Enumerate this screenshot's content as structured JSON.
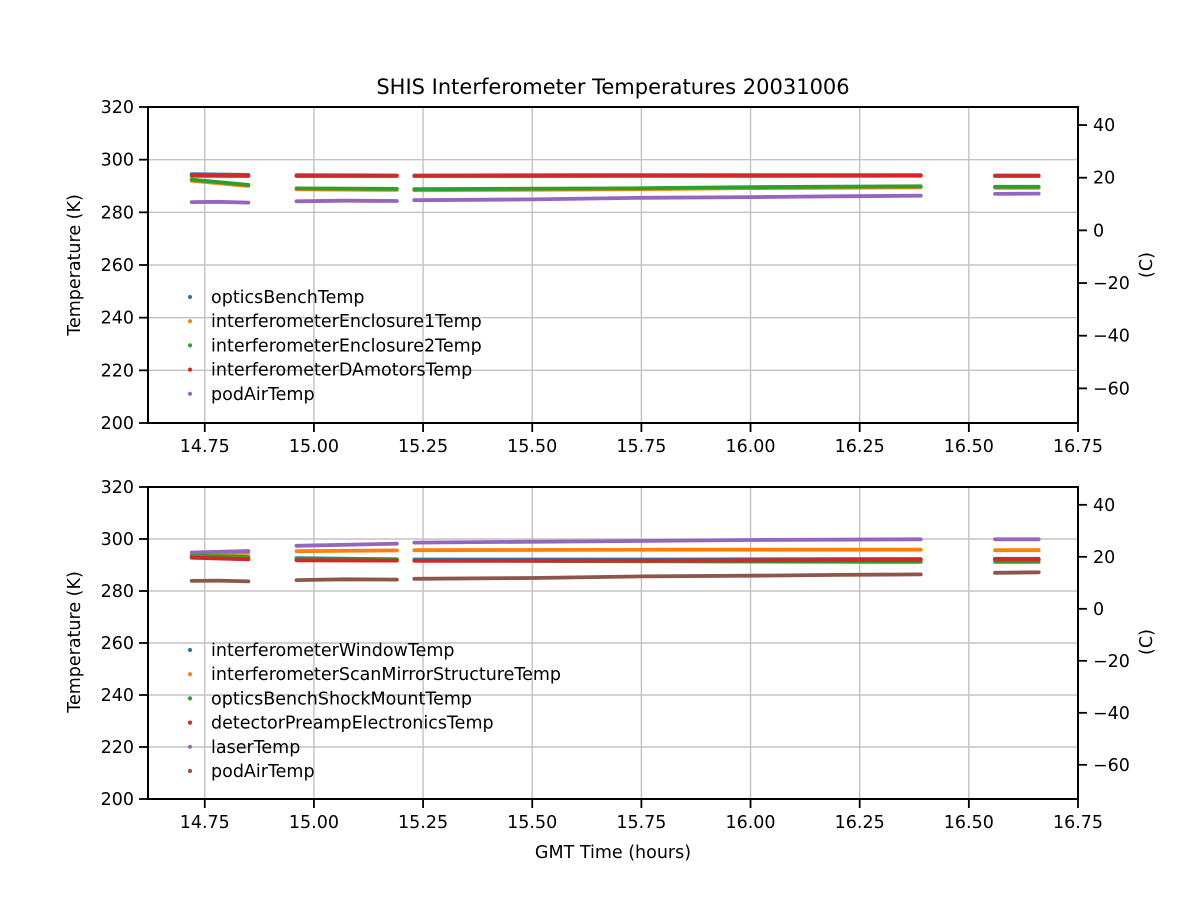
{
  "figure": {
    "title": "SHIS Interferometer Temperatures 20031006",
    "background_color": "#ffffff",
    "grid_color": "#c2c2c2",
    "spine_color": "#000000",
    "text_color": "#000000"
  },
  "chart_data": [
    {
      "type": "scatter",
      "title": "SHIS Interferometer Temperatures 20031006",
      "xlabel": "",
      "ylabel": "Temperature (K)",
      "ylabel_right": "(C)",
      "xlim": [
        14.62,
        16.75
      ],
      "ylim": [
        200,
        320
      ],
      "grid": true,
      "legend_position": "lower-left-inside",
      "xticks": [
        14.75,
        15.0,
        15.25,
        15.5,
        15.75,
        16.0,
        16.25,
        16.5,
        16.75
      ],
      "xtick_labels": [
        "14.75",
        "15.00",
        "15.25",
        "15.50",
        "15.75",
        "16.00",
        "16.25",
        "16.50",
        "16.75"
      ],
      "yticks": [
        200,
        220,
        240,
        260,
        280,
        300,
        320
      ],
      "ytick_labels": [
        "200",
        "220",
        "240",
        "260",
        "280",
        "300",
        "320"
      ],
      "yticks_right_C": [
        40,
        20,
        0,
        -20,
        -40,
        -60
      ],
      "ytick_right_labels": [
        "40",
        "20",
        "0",
        "−20",
        "−40",
        "−60"
      ],
      "series": [
        {
          "name": "opticsBenchTemp",
          "color": "#1f77b4",
          "segments": [
            [
              [
                14.72,
                294.5
              ],
              [
                14.85,
                294.2
              ]
            ],
            [
              [
                14.96,
                294.1
              ],
              [
                15.19,
                294.0
              ]
            ],
            [
              [
                15.23,
                294.0
              ],
              [
                15.6,
                294.1
              ],
              [
                16.0,
                294.15
              ],
              [
                16.39,
                294.1
              ]
            ],
            [
              [
                16.56,
                294.0
              ],
              [
                16.66,
                294.0
              ]
            ]
          ]
        },
        {
          "name": "interferometerEnclosure1Temp",
          "color": "#ff7f0e",
          "segments": [
            [
              [
                14.72,
                292.0
              ],
              [
                14.85,
                290.0
              ]
            ],
            [
              [
                14.96,
                288.7
              ],
              [
                15.19,
                288.5
              ]
            ],
            [
              [
                15.23,
                288.4
              ],
              [
                15.7,
                288.7
              ],
              [
                16.0,
                289.2
              ],
              [
                16.39,
                289.5
              ]
            ],
            [
              [
                16.56,
                289.3
              ],
              [
                16.66,
                289.3
              ]
            ]
          ]
        },
        {
          "name": "interferometerEnclosure2Temp",
          "color": "#2ca02c",
          "segments": [
            [
              [
                14.72,
                292.4
              ],
              [
                14.85,
                290.4
              ]
            ],
            [
              [
                14.96,
                289.1
              ],
              [
                15.19,
                288.9
              ]
            ],
            [
              [
                15.23,
                288.8
              ],
              [
                15.7,
                289.1
              ],
              [
                16.0,
                289.6
              ],
              [
                16.39,
                289.9
              ]
            ],
            [
              [
                16.56,
                289.7
              ],
              [
                16.66,
                289.7
              ]
            ]
          ]
        },
        {
          "name": "interferometerDAmotorsTemp",
          "color": "#d62728",
          "segments": [
            [
              [
                14.72,
                293.9
              ],
              [
                14.85,
                293.8
              ]
            ],
            [
              [
                14.96,
                293.8
              ],
              [
                15.19,
                293.8
              ]
            ],
            [
              [
                15.23,
                293.8
              ],
              [
                16.39,
                293.9
              ]
            ],
            [
              [
                16.56,
                293.8
              ],
              [
                16.66,
                293.8
              ]
            ]
          ]
        },
        {
          "name": "podAirTemp",
          "color": "#9467bd",
          "segments": [
            [
              [
                14.72,
                283.9
              ],
              [
                14.78,
                284.0
              ],
              [
                14.85,
                283.7
              ]
            ],
            [
              [
                14.96,
                284.2
              ],
              [
                15.07,
                284.4
              ],
              [
                15.19,
                284.3
              ]
            ],
            [
              [
                15.23,
                284.6
              ],
              [
                15.5,
                284.9
              ],
              [
                15.75,
                285.5
              ],
              [
                16.0,
                285.8
              ],
              [
                16.2,
                286.1
              ],
              [
                16.39,
                286.3
              ]
            ],
            [
              [
                16.56,
                287.0
              ],
              [
                16.66,
                287.1
              ]
            ]
          ]
        }
      ]
    },
    {
      "type": "scatter",
      "title": "",
      "xlabel": "GMT Time (hours)",
      "ylabel": "Temperature (K)",
      "ylabel_right": "(C)",
      "xlim": [
        14.62,
        16.75
      ],
      "ylim": [
        200,
        320
      ],
      "grid": true,
      "legend_position": "lower-left-inside",
      "xticks": [
        14.75,
        15.0,
        15.25,
        15.5,
        15.75,
        16.0,
        16.25,
        16.5,
        16.75
      ],
      "xtick_labels": [
        "14.75",
        "15.00",
        "15.25",
        "15.50",
        "15.75",
        "16.00",
        "16.25",
        "16.50",
        "16.75"
      ],
      "yticks": [
        200,
        220,
        240,
        260,
        280,
        300,
        320
      ],
      "ytick_labels": [
        "200",
        "220",
        "240",
        "260",
        "280",
        "300",
        "320"
      ],
      "yticks_right_C": [
        40,
        20,
        0,
        -20,
        -40,
        -60
      ],
      "ytick_right_labels": [
        "40",
        "20",
        "0",
        "−20",
        "−40",
        "−60"
      ],
      "series": [
        {
          "name": "interferometerWindowTemp",
          "color": "#1f77b4",
          "segments": [
            [
              [
                14.72,
                293.2
              ],
              [
                14.85,
                292.8
              ]
            ],
            [
              [
                14.96,
                292.6
              ],
              [
                15.19,
                292.2
              ]
            ],
            [
              [
                15.23,
                292.1
              ],
              [
                15.8,
                292.1
              ],
              [
                16.39,
                292.3
              ]
            ],
            [
              [
                16.56,
                292.4
              ],
              [
                16.66,
                292.4
              ]
            ]
          ]
        },
        {
          "name": "interferometerScanMirrorStructureTemp",
          "color": "#ff7f0e",
          "segments": [
            [
              [
                14.72,
                294.4
              ],
              [
                14.85,
                294.7
              ]
            ],
            [
              [
                14.96,
                295.3
              ],
              [
                15.19,
                295.6
              ]
            ],
            [
              [
                15.23,
                295.7
              ],
              [
                15.8,
                295.9
              ],
              [
                16.39,
                295.9
              ]
            ],
            [
              [
                16.56,
                295.7
              ],
              [
                16.66,
                295.7
              ]
            ]
          ]
        },
        {
          "name": "opticsBenchShockMountTemp",
          "color": "#2ca02c",
          "segments": [
            [
              [
                14.72,
                293.6
              ],
              [
                14.85,
                293.1
              ]
            ],
            [
              [
                14.96,
                292.3
              ],
              [
                15.19,
                292.0
              ]
            ],
            [
              [
                15.23,
                291.7
              ],
              [
                15.8,
                291.4
              ],
              [
                16.39,
                291.2
              ]
            ],
            [
              [
                16.56,
                291.2
              ],
              [
                16.66,
                291.2
              ]
            ]
          ]
        },
        {
          "name": "detectorPreampElectronicsTemp",
          "color": "#d62728",
          "segments": [
            [
              [
                14.72,
                292.8
              ],
              [
                14.85,
                292.2
              ]
            ],
            [
              [
                14.96,
                291.8
              ],
              [
                15.19,
                291.7
              ]
            ],
            [
              [
                15.23,
                291.6
              ],
              [
                15.8,
                291.7
              ],
              [
                16.39,
                292.0
              ]
            ],
            [
              [
                16.56,
                292.2
              ],
              [
                16.66,
                292.2
              ]
            ]
          ]
        },
        {
          "name": "laserTemp",
          "color": "#9467bd",
          "segments": [
            [
              [
                14.72,
                294.8
              ],
              [
                14.85,
                295.4
              ]
            ],
            [
              [
                14.96,
                297.4
              ],
              [
                15.19,
                298.2
              ]
            ],
            [
              [
                15.23,
                298.6
              ],
              [
                15.7,
                299.2
              ],
              [
                16.0,
                299.6
              ],
              [
                16.39,
                299.9
              ]
            ],
            [
              [
                16.56,
                299.9
              ],
              [
                16.66,
                299.9
              ]
            ]
          ]
        },
        {
          "name": "podAirTemp",
          "color": "#8c564b",
          "segments": [
            [
              [
                14.72,
                283.9
              ],
              [
                14.78,
                284.0
              ],
              [
                14.85,
                283.7
              ]
            ],
            [
              [
                14.96,
                284.2
              ],
              [
                15.07,
                284.5
              ],
              [
                15.19,
                284.4
              ]
            ],
            [
              [
                15.23,
                284.7
              ],
              [
                15.5,
                285.0
              ],
              [
                15.75,
                285.6
              ],
              [
                16.0,
                285.9
              ],
              [
                16.2,
                286.2
              ],
              [
                16.39,
                286.4
              ]
            ],
            [
              [
                16.56,
                287.0
              ],
              [
                16.66,
                287.2
              ]
            ]
          ]
        }
      ]
    }
  ]
}
